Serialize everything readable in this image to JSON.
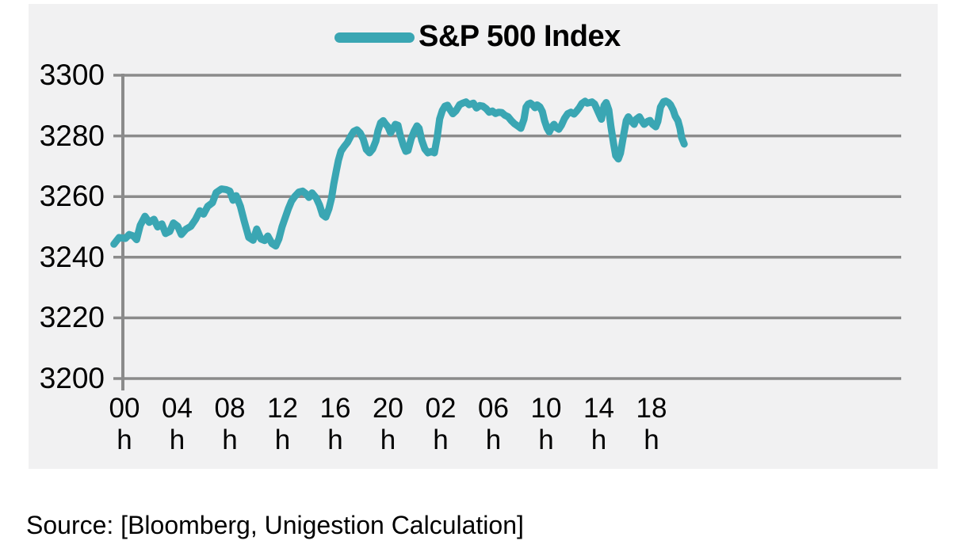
{
  "legend": {
    "label": "S&P 500 Index"
  },
  "source_text": "Source: [Bloomberg, Unigestion Calculation]",
  "colors": {
    "line": "#3aa6b3",
    "grid": "#8b8b8b",
    "axis": "#8b8b8b",
    "panel_bg": "#f1f1f2",
    "page_bg": "#ffffff",
    "text": "#000000"
  },
  "chart_data": {
    "type": "line",
    "title": "S&P 500 Index",
    "legend_position": "top-center",
    "grid": "horizontal-only",
    "ylim": [
      3200,
      3300
    ],
    "y_ticks": [
      3300,
      3280,
      3260,
      3240,
      3220,
      3200
    ],
    "x_tick_labels": [
      {
        "hour": "00",
        "unit": "h"
      },
      {
        "hour": "04",
        "unit": "h"
      },
      {
        "hour": "08",
        "unit": "h"
      },
      {
        "hour": "12",
        "unit": "h"
      },
      {
        "hour": "16",
        "unit": "h"
      },
      {
        "hour": "20",
        "unit": "h"
      },
      {
        "hour": "02",
        "unit": "h"
      },
      {
        "hour": "06",
        "unit": "h"
      },
      {
        "hour": "10",
        "unit": "h"
      },
      {
        "hour": "14",
        "unit": "h"
      },
      {
        "hour": "18",
        "unit": "h"
      }
    ],
    "x_unit_note": "x values below are in tick units: 0 = '00 h' label position, 1 step = 4 hours",
    "series": [
      {
        "name": "S&P 500 Index",
        "color": "#3aa6b3",
        "points": [
          [
            -0.2,
            3244.3
          ],
          [
            -0.1,
            3246.5
          ],
          [
            0.02,
            3246.2
          ],
          [
            0.09,
            3247.5
          ],
          [
            0.17,
            3247.0
          ],
          [
            0.23,
            3245.8
          ],
          [
            0.3,
            3250.5
          ],
          [
            0.39,
            3253.5
          ],
          [
            0.47,
            3251.5
          ],
          [
            0.56,
            3252.5
          ],
          [
            0.63,
            3250.0
          ],
          [
            0.71,
            3251.0
          ],
          [
            0.78,
            3247.8
          ],
          [
            0.86,
            3248.5
          ],
          [
            0.93,
            3251.3
          ],
          [
            1.01,
            3250.2
          ],
          [
            1.08,
            3247.5
          ],
          [
            1.17,
            3249.3
          ],
          [
            1.26,
            3250.2
          ],
          [
            1.35,
            3252.5
          ],
          [
            1.43,
            3255.3
          ],
          [
            1.5,
            3254.2
          ],
          [
            1.58,
            3256.8
          ],
          [
            1.67,
            3258.0
          ],
          [
            1.74,
            3261.3
          ],
          [
            1.84,
            3262.5
          ],
          [
            1.93,
            3262.3
          ],
          [
            2.0,
            3261.8
          ],
          [
            2.06,
            3258.8
          ],
          [
            2.12,
            3260.3
          ],
          [
            2.2,
            3256.8
          ],
          [
            2.27,
            3252.0
          ],
          [
            2.36,
            3246.5
          ],
          [
            2.44,
            3245.6
          ],
          [
            2.51,
            3249.3
          ],
          [
            2.59,
            3246.0
          ],
          [
            2.66,
            3245.5
          ],
          [
            2.72,
            3247.0
          ],
          [
            2.8,
            3244.5
          ],
          [
            2.87,
            3243.7
          ],
          [
            2.93,
            3246.0
          ],
          [
            2.99,
            3250.0
          ],
          [
            3.05,
            3253.0
          ],
          [
            3.11,
            3256.0
          ],
          [
            3.17,
            3258.5
          ],
          [
            3.23,
            3260.0
          ],
          [
            3.31,
            3261.5
          ],
          [
            3.38,
            3261.8
          ],
          [
            3.44,
            3261.0
          ],
          [
            3.5,
            3259.7
          ],
          [
            3.56,
            3261.2
          ],
          [
            3.64,
            3259.5
          ],
          [
            3.7,
            3257.2
          ],
          [
            3.76,
            3254.0
          ],
          [
            3.82,
            3253.2
          ],
          [
            3.88,
            3256.0
          ],
          [
            3.93,
            3259.5
          ],
          [
            3.97,
            3264.0
          ],
          [
            4.02,
            3268.5
          ],
          [
            4.06,
            3272.0
          ],
          [
            4.11,
            3275.0
          ],
          [
            4.17,
            3276.5
          ],
          [
            4.23,
            3277.8
          ],
          [
            4.29,
            3279.8
          ],
          [
            4.35,
            3281.5
          ],
          [
            4.41,
            3282.0
          ],
          [
            4.47,
            3281.0
          ],
          [
            4.53,
            3279.0
          ],
          [
            4.59,
            3275.5
          ],
          [
            4.65,
            3274.4
          ],
          [
            4.71,
            3275.7
          ],
          [
            4.77,
            3278.3
          ],
          [
            4.81,
            3281.7
          ],
          [
            4.86,
            3284.3
          ],
          [
            4.91,
            3285.0
          ],
          [
            4.95,
            3284.0
          ],
          [
            5.0,
            3283.0
          ],
          [
            5.05,
            3281.0
          ],
          [
            5.1,
            3282.5
          ],
          [
            5.14,
            3283.8
          ],
          [
            5.19,
            3283.5
          ],
          [
            5.23,
            3280.4
          ],
          [
            5.29,
            3277.0
          ],
          [
            5.34,
            3274.9
          ],
          [
            5.38,
            3275.2
          ],
          [
            5.44,
            3279.1
          ],
          [
            5.5,
            3281.7
          ],
          [
            5.55,
            3283.3
          ],
          [
            5.59,
            3282.5
          ],
          [
            5.64,
            3278.6
          ],
          [
            5.7,
            3275.7
          ],
          [
            5.76,
            3274.4
          ],
          [
            5.83,
            3274.9
          ],
          [
            5.88,
            3274.4
          ],
          [
            5.93,
            3279.1
          ],
          [
            5.98,
            3285.6
          ],
          [
            6.03,
            3288.3
          ],
          [
            6.08,
            3289.8
          ],
          [
            6.13,
            3290.1
          ],
          [
            6.18,
            3288.6
          ],
          [
            6.23,
            3287.3
          ],
          [
            6.29,
            3288.3
          ],
          [
            6.36,
            3290.3
          ],
          [
            6.42,
            3290.8
          ],
          [
            6.48,
            3291.2
          ],
          [
            6.54,
            3290.3
          ],
          [
            6.62,
            3290.8
          ],
          [
            6.68,
            3289.2
          ],
          [
            6.74,
            3290.0
          ],
          [
            6.8,
            3289.8
          ],
          [
            6.86,
            3289.0
          ],
          [
            6.92,
            3287.8
          ],
          [
            6.98,
            3288.2
          ],
          [
            7.04,
            3287.4
          ],
          [
            7.1,
            3287.8
          ],
          [
            7.16,
            3287.7
          ],
          [
            7.22,
            3286.8
          ],
          [
            7.28,
            3286.3
          ],
          [
            7.34,
            3285.0
          ],
          [
            7.4,
            3284.0
          ],
          [
            7.46,
            3283.3
          ],
          [
            7.52,
            3282.5
          ],
          [
            7.58,
            3285.5
          ],
          [
            7.62,
            3289.5
          ],
          [
            7.66,
            3290.5
          ],
          [
            7.7,
            3290.8
          ],
          [
            7.74,
            3290.3
          ],
          [
            7.79,
            3289.3
          ],
          [
            7.83,
            3290.2
          ],
          [
            7.88,
            3289.6
          ],
          [
            7.93,
            3288.0
          ],
          [
            7.97,
            3285.0
          ],
          [
            8.02,
            3282.5
          ],
          [
            8.06,
            3281.3
          ],
          [
            8.11,
            3283.0
          ],
          [
            8.15,
            3283.8
          ],
          [
            8.19,
            3282.8
          ],
          [
            8.24,
            3282.2
          ],
          [
            8.29,
            3283.5
          ],
          [
            8.35,
            3285.8
          ],
          [
            8.41,
            3287.3
          ],
          [
            8.47,
            3287.8
          ],
          [
            8.53,
            3287.2
          ],
          [
            8.58,
            3288.2
          ],
          [
            8.63,
            3289.3
          ],
          [
            8.68,
            3290.7
          ],
          [
            8.74,
            3291.4
          ],
          [
            8.78,
            3290.8
          ],
          [
            8.83,
            3291.0
          ],
          [
            8.87,
            3291.2
          ],
          [
            8.92,
            3290.5
          ],
          [
            8.96,
            3289.0
          ],
          [
            9.01,
            3287.0
          ],
          [
            9.05,
            3285.5
          ],
          [
            9.1,
            3290.0
          ],
          [
            9.14,
            3291.0
          ],
          [
            9.19,
            3288.5
          ],
          [
            9.23,
            3283.0
          ],
          [
            9.28,
            3277.5
          ],
          [
            9.32,
            3273.5
          ],
          [
            9.37,
            3272.4
          ],
          [
            9.41,
            3274.3
          ],
          [
            9.47,
            3280.3
          ],
          [
            9.52,
            3285.0
          ],
          [
            9.56,
            3286.3
          ],
          [
            9.62,
            3284.8
          ],
          [
            9.67,
            3283.8
          ],
          [
            9.71,
            3285.5
          ],
          [
            9.77,
            3286.3
          ],
          [
            9.82,
            3284.8
          ],
          [
            9.86,
            3283.8
          ],
          [
            9.93,
            3284.8
          ],
          [
            9.97,
            3285.1
          ],
          [
            10.02,
            3283.8
          ],
          [
            10.08,
            3283.0
          ],
          [
            10.12,
            3284.8
          ],
          [
            10.17,
            3289.5
          ],
          [
            10.23,
            3291.3
          ],
          [
            10.27,
            3291.5
          ],
          [
            10.32,
            3291.0
          ],
          [
            10.36,
            3290.3
          ],
          [
            10.41,
            3288.5
          ],
          [
            10.45,
            3286.5
          ],
          [
            10.5,
            3285.0
          ],
          [
            10.54,
            3282.5
          ],
          [
            10.57,
            3279.5
          ],
          [
            10.62,
            3277.3
          ]
        ]
      }
    ]
  }
}
